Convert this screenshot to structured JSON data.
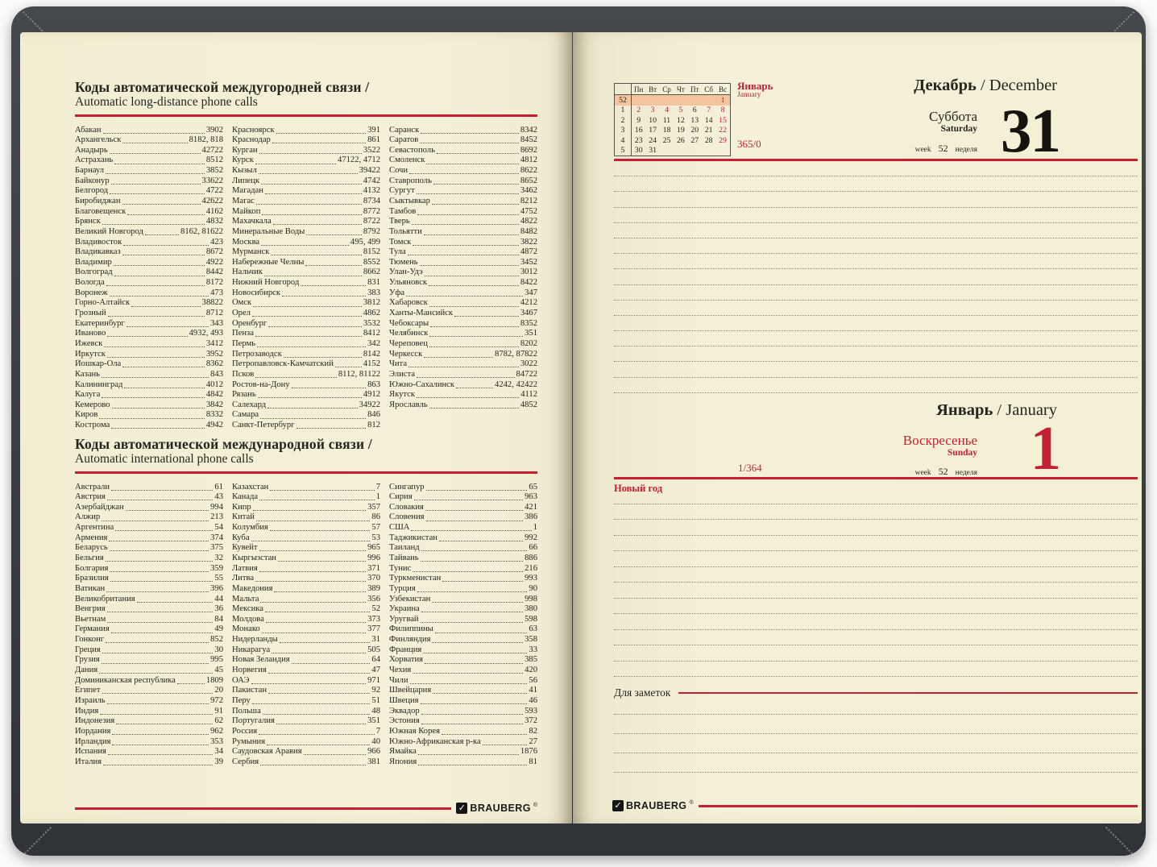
{
  "brand": {
    "name": "BRAUBERG",
    "reg": "®",
    "check": "✓"
  },
  "colors": {
    "accent_red": "#c41f33",
    "paper": "#f4f0d6",
    "calendar_highlight": "#f4c49e",
    "cover": "#3a3d41",
    "ink": "#26251f"
  },
  "left_page": {
    "sections": [
      {
        "title_ru": "Коды автоматической междугородней связи /",
        "title_en": "Automatic long-distance phone calls",
        "columns": [
          [
            [
              "Абакан",
              "3902"
            ],
            [
              "Архангельск",
              "8182, 818"
            ],
            [
              "Анадырь",
              "42722"
            ],
            [
              "Астрахань",
              "8512"
            ],
            [
              "Барнаул",
              "3852"
            ],
            [
              "Байконур",
              "33622"
            ],
            [
              "Белгород",
              "4722"
            ],
            [
              "Биробиджан",
              "42622"
            ],
            [
              "Благовещенск",
              "4162"
            ],
            [
              "Брянск",
              "4832"
            ],
            [
              "Великий Новгород",
              "8162, 81622"
            ],
            [
              "Владивосток",
              "423"
            ],
            [
              "Владикавказ",
              "8672"
            ],
            [
              "Владимир",
              "4922"
            ],
            [
              "Волгоград",
              "8442"
            ],
            [
              "Вологда",
              "8172"
            ],
            [
              "Воронеж",
              "473"
            ],
            [
              "Горно-Алтайск",
              "38822"
            ],
            [
              "Грозный",
              "8712"
            ],
            [
              "Екатеринбург",
              "343"
            ],
            [
              "Иваново",
              "4932, 493"
            ],
            [
              "Ижевск",
              "3412"
            ],
            [
              "Иркутск",
              "3952"
            ],
            [
              "Йошкар-Ола",
              "8362"
            ],
            [
              "Казань",
              "843"
            ],
            [
              "Калининград",
              "4012"
            ],
            [
              "Калуга",
              "4842"
            ],
            [
              "Кемерово",
              "3842"
            ],
            [
              "Киров",
              "8332"
            ],
            [
              "Кострома",
              "4942"
            ]
          ],
          [
            [
              "Красноярск",
              "391"
            ],
            [
              "Краснодар",
              "861"
            ],
            [
              "Курган",
              "3522"
            ],
            [
              "Курск",
              "47122, 4712"
            ],
            [
              "Кызыл",
              "39422"
            ],
            [
              "Липецк",
              "4742"
            ],
            [
              "Магадан",
              "4132"
            ],
            [
              "Магас",
              "8734"
            ],
            [
              "Майкоп",
              "8772"
            ],
            [
              "Махачкала",
              "8722"
            ],
            [
              "Минеральные Воды",
              "8792"
            ],
            [
              "Москва",
              "495, 499"
            ],
            [
              "Мурманск",
              "8152"
            ],
            [
              "Набережные Челны",
              "8552"
            ],
            [
              "Нальчик",
              "8662"
            ],
            [
              "Нижний Новгород",
              "831"
            ],
            [
              "Новосибирск",
              "383"
            ],
            [
              "Омск",
              "3812"
            ],
            [
              "Орел",
              "4862"
            ],
            [
              "Оренбург",
              "3532"
            ],
            [
              "Пенза",
              "8412"
            ],
            [
              "Пермь",
              "342"
            ],
            [
              "Петрозаводск",
              "8142"
            ],
            [
              "Петропавловск-Камчатский",
              "4152"
            ],
            [
              "Псков",
              "8112, 81122"
            ],
            [
              "Ростов-на-Дону",
              "863"
            ],
            [
              "Рязань",
              "4912"
            ],
            [
              "Салехард",
              "34922"
            ],
            [
              "Самара",
              "846"
            ],
            [
              "Санкт-Петербург",
              "812"
            ]
          ],
          [
            [
              "Саранск",
              "8342"
            ],
            [
              "Саратов",
              "8452"
            ],
            [
              "Севастополь",
              "8692"
            ],
            [
              "Смоленск",
              "4812"
            ],
            [
              "Сочи",
              "8622"
            ],
            [
              "Ставрополь",
              "8652"
            ],
            [
              "Сургут",
              "3462"
            ],
            [
              "Сыктывкар",
              "8212"
            ],
            [
              "Тамбов",
              "4752"
            ],
            [
              "Тверь",
              "4822"
            ],
            [
              "Тольятти",
              "8482"
            ],
            [
              "Томск",
              "3822"
            ],
            [
              "Тула",
              "4872"
            ],
            [
              "Тюмень",
              "3452"
            ],
            [
              "Улан-Удэ",
              "3012"
            ],
            [
              "Ульяновск",
              "8422"
            ],
            [
              "Уфа",
              "347"
            ],
            [
              "Хабаровск",
              "4212"
            ],
            [
              "Ханты-Мансийск",
              "3467"
            ],
            [
              "Чебоксары",
              "8352"
            ],
            [
              "Челябинск",
              "351"
            ],
            [
              "Череповец",
              "8202"
            ],
            [
              "Черкесск",
              "8782, 87822"
            ],
            [
              "Чита",
              "3022"
            ],
            [
              "Элиста",
              "84722"
            ],
            [
              "Южно-Сахалинск",
              "4242, 42422"
            ],
            [
              "Якутск",
              "4112"
            ],
            [
              "Ярославль",
              "4852"
            ]
          ]
        ]
      },
      {
        "title_ru": "Коды автоматической международной связи /",
        "title_en": "Automatic international phone calls",
        "columns": [
          [
            [
              "Австрали",
              "61"
            ],
            [
              "Австрия",
              "43"
            ],
            [
              "Азербайджан",
              "994"
            ],
            [
              "Алжир",
              "213"
            ],
            [
              "Аргентина",
              "54"
            ],
            [
              "Армения",
              "374"
            ],
            [
              "Беларусь",
              "375"
            ],
            [
              "Бельгия",
              "32"
            ],
            [
              "Болгария",
              "359"
            ],
            [
              "Бразилия",
              "55"
            ],
            [
              "Ватикан",
              "396"
            ],
            [
              "Великобритания",
              "44"
            ],
            [
              "Венгрия",
              "36"
            ],
            [
              "Вьетнам",
              "84"
            ],
            [
              "Германия",
              "49"
            ],
            [
              "Гонконг",
              "852"
            ],
            [
              "Греция",
              "30"
            ],
            [
              "Грузия",
              "995"
            ],
            [
              "Дания",
              "45"
            ],
            [
              "Доминиканская республика",
              "1809"
            ],
            [
              "Египет",
              "20"
            ],
            [
              "Израиль",
              "972"
            ],
            [
              "Индия",
              "91"
            ],
            [
              "Индонезия",
              "62"
            ],
            [
              "Иордания",
              "962"
            ],
            [
              "Ирландия",
              "353"
            ],
            [
              "Испания",
              "34"
            ],
            [
              "Италия",
              "39"
            ]
          ],
          [
            [
              "Казахстан",
              "7"
            ],
            [
              "Канада",
              "1"
            ],
            [
              "Кипр",
              "357"
            ],
            [
              "Китай",
              "86"
            ],
            [
              "Колумбия",
              "57"
            ],
            [
              "Куба",
              "53"
            ],
            [
              "Кувейт",
              "965"
            ],
            [
              "Кыргызстан",
              "996"
            ],
            [
              "Латвия",
              "371"
            ],
            [
              "Литва",
              "370"
            ],
            [
              "Македония",
              "389"
            ],
            [
              "Мальта",
              "356"
            ],
            [
              "Мексика",
              "52"
            ],
            [
              "Молдова",
              "373"
            ],
            [
              "Монако",
              "377"
            ],
            [
              "Нидерланды",
              "31"
            ],
            [
              "Никарагуа",
              "505"
            ],
            [
              "Новая Зеландия",
              "64"
            ],
            [
              "Норвегия",
              "47"
            ],
            [
              "ОАЭ",
              "971"
            ],
            [
              "Пакистан",
              "92"
            ],
            [
              "Перу",
              "51"
            ],
            [
              "Польша",
              "48"
            ],
            [
              "Португалия",
              "351"
            ],
            [
              "Россия",
              "7"
            ],
            [
              "Румыния",
              "40"
            ],
            [
              "Саудовская Аравия",
              "966"
            ],
            [
              "Сербия",
              "381"
            ]
          ],
          [
            [
              "Сингапур",
              "65"
            ],
            [
              "Сирия",
              "963"
            ],
            [
              "Словакия",
              "421"
            ],
            [
              "Словения",
              "386"
            ],
            [
              "США",
              "1"
            ],
            [
              "Таджикистан",
              "992"
            ],
            [
              "Таиланд",
              "66"
            ],
            [
              "Тайвань",
              "886"
            ],
            [
              "Тунис",
              "216"
            ],
            [
              "Туркменистан",
              "993"
            ],
            [
              "Турция",
              "90"
            ],
            [
              "Узбекистан",
              "998"
            ],
            [
              "Украина",
              "380"
            ],
            [
              "Уругвай",
              "598"
            ],
            [
              "Филиппины",
              "63"
            ],
            [
              "Финляндия",
              "358"
            ],
            [
              "Франция",
              "33"
            ],
            [
              "Хорватия",
              "385"
            ],
            [
              "Чехия",
              "420"
            ],
            [
              "Чили",
              "56"
            ],
            [
              "Швейцария",
              "41"
            ],
            [
              "Швеция",
              "46"
            ],
            [
              "Эквадор",
              "593"
            ],
            [
              "Эстония",
              "372"
            ],
            [
              "Южная Корея",
              "82"
            ],
            [
              "Южно-Африканская р-ка",
              "27"
            ],
            [
              "Ямайка",
              "1876"
            ],
            [
              "Япония",
              "81"
            ]
          ]
        ]
      }
    ]
  },
  "right_page": {
    "calendar": {
      "month_ru": "Январь",
      "month_en": "January",
      "headers": [
        "Пн",
        "Вт",
        "Ср",
        "Чт",
        "Пт",
        "Сб",
        "Вс"
      ],
      "rows": [
        {
          "week": "52",
          "days": [
            "",
            "",
            "",
            "",
            "",
            "",
            "1"
          ],
          "red": [
            6
          ],
          "highlight": true
        },
        {
          "week": "1",
          "days": [
            "2",
            "3",
            "4",
            "5",
            "6",
            "7",
            "8"
          ],
          "red": [
            0,
            1,
            2,
            3,
            5,
            6
          ]
        },
        {
          "week": "2",
          "days": [
            "9",
            "10",
            "11",
            "12",
            "13",
            "14",
            "15"
          ],
          "red": [
            6
          ]
        },
        {
          "week": "3",
          "days": [
            "16",
            "17",
            "18",
            "19",
            "20",
            "21",
            "22"
          ],
          "red": [
            6
          ]
        },
        {
          "week": "4",
          "days": [
            "23",
            "24",
            "25",
            "26",
            "27",
            "28",
            "29"
          ],
          "red": [
            6
          ]
        },
        {
          "week": "5",
          "days": [
            "30",
            "31",
            "",
            "",
            "",
            "",
            ""
          ],
          "red": []
        }
      ]
    },
    "december": {
      "month_ru": "Декабрь",
      "month_rest": " / December",
      "day_ru": "Суббота",
      "day_en": "Saturday",
      "week_word_en": "week",
      "week_num": "52",
      "week_word_ru": "неделя",
      "day_num": "31",
      "counter": "365/0"
    },
    "january": {
      "month_ru": "Январь",
      "month_rest": " / January",
      "day_ru": "Воскресенье",
      "day_en": "Sunday",
      "week_word_en": "week",
      "week_num": "52",
      "week_word_ru": "неделя",
      "day_num": "1",
      "counter": "1/364",
      "holiday": "Новый год"
    },
    "notes_label": "Для заметок"
  }
}
